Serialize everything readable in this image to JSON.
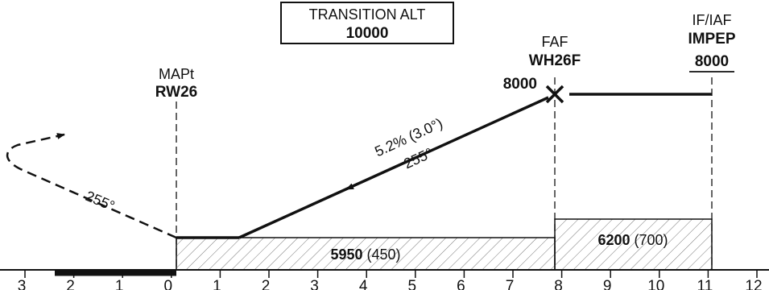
{
  "transition_alt": {
    "label": "TRANSITION ALT",
    "value": "10000"
  },
  "fixes": {
    "mapt": {
      "role": "MAPt",
      "name": "RW26"
    },
    "faf": {
      "role": "FAF",
      "name": "WH26F",
      "altitude": "8000"
    },
    "if_iaf": {
      "role": "IF/IAF",
      "name": "IMPEP",
      "altitude": "8000"
    }
  },
  "glidepath": {
    "gradient": "5.2% (3.0°)",
    "course": "255°"
  },
  "missed_approach": {
    "course": "255°"
  },
  "minimums": {
    "segment1": {
      "alt": "5950",
      "hat": "(450)"
    },
    "segment2": {
      "alt": "6200",
      "hat": "(700)"
    }
  },
  "distance_scale": {
    "ticks": [
      "3",
      "2",
      "1",
      "0",
      "1",
      "2",
      "3",
      "4",
      "5",
      "6",
      "7",
      "8",
      "9",
      "10",
      "11",
      "12"
    ]
  }
}
